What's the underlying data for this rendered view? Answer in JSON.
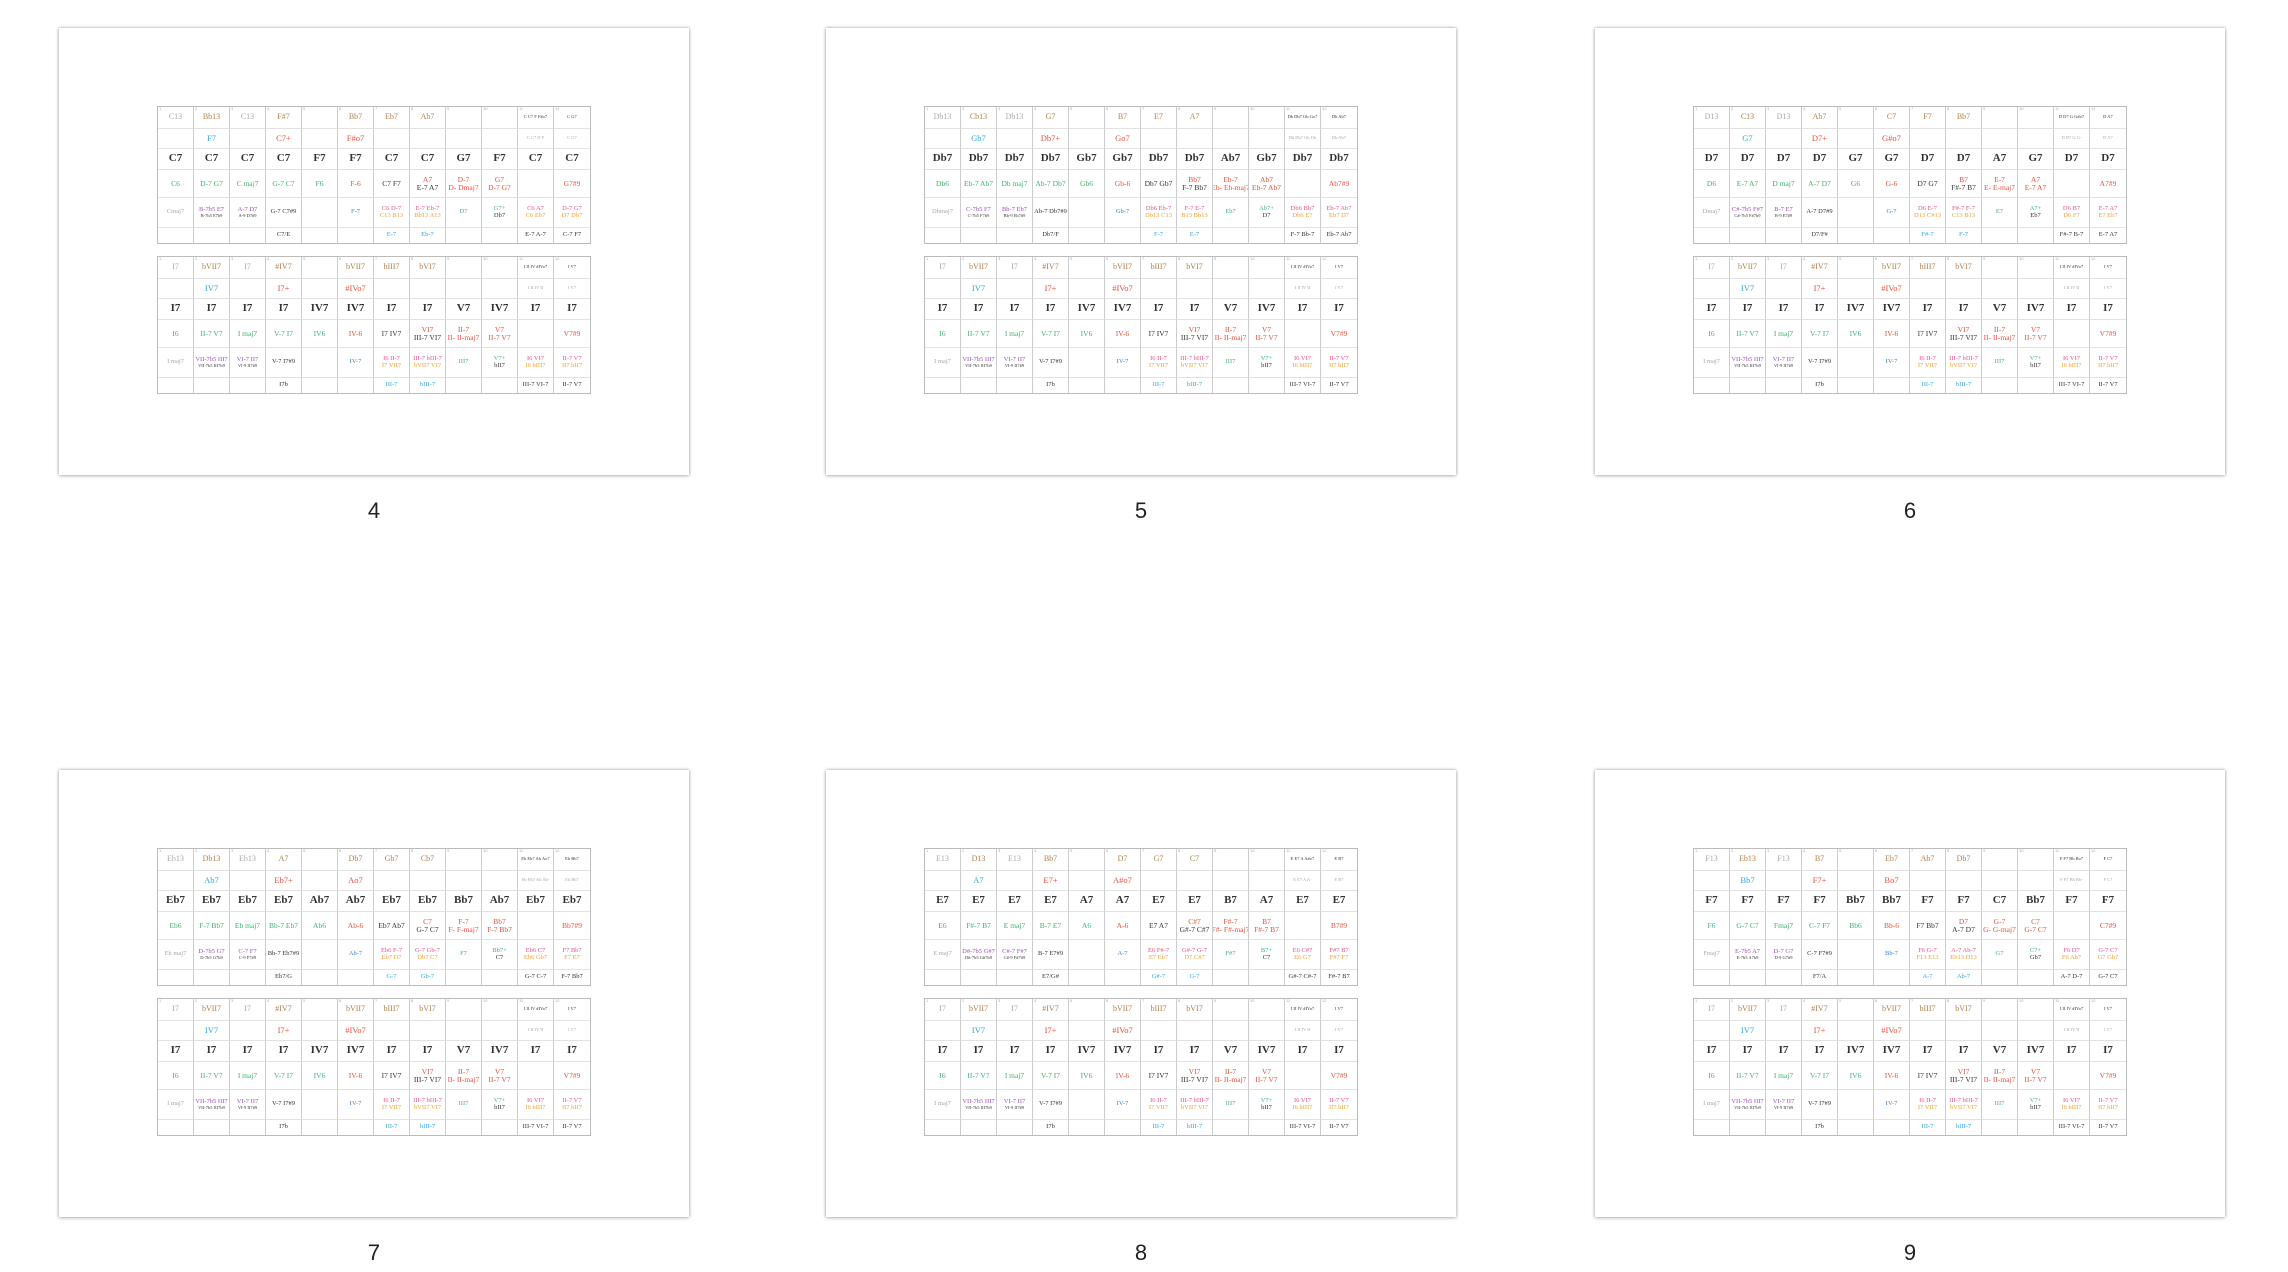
{
  "colors": {
    "brown": "#b0804a",
    "blue": "#2aa8e0",
    "red": "#e8503a",
    "green": "#3cb371",
    "purple": "#9b4fc0",
    "pink": "#e8508a",
    "orange": "#f0a030",
    "gray": "#a8a8a8",
    "dark": "#333333",
    "bluealt": "#3a7fd0"
  },
  "column_numbers": [
    "1",
    "2",
    "3",
    "4",
    "5",
    "6",
    "7",
    "8",
    "9",
    "10",
    "11",
    "12"
  ],
  "cell_colors": {
    "top": [
      "gray",
      "brown",
      "gray",
      "brown",
      "",
      "brown",
      "brown",
      "brown",
      "",
      "",
      "dark",
      "dark"
    ],
    "sub": [
      "",
      "blue",
      "",
      "red",
      "",
      "red",
      "",
      "",
      "",
      "",
      "gray",
      "gray"
    ],
    "main": [
      "dark",
      "dark",
      "dark",
      "dark",
      "dark",
      "dark",
      "dark",
      "dark",
      "dark",
      "dark",
      "dark",
      "dark"
    ],
    "ext": [
      "green",
      "green",
      "green",
      "green",
      "green",
      "red",
      "dark",
      "red|dark",
      "red|red",
      "red|red",
      "",
      "red"
    ],
    "alt": [
      "gray",
      "purple|dark",
      "purple|dark",
      "dark",
      "",
      "bluealt",
      "pink|orange",
      "pink|orange",
      "green",
      "green|dark",
      "pink|orange",
      "pink|orange"
    ],
    "bottom": [
      "",
      "",
      "",
      "dark",
      "",
      "",
      "blue",
      "blue",
      "",
      "",
      "dark",
      "dark"
    ]
  },
  "roman_table": {
    "top": [
      "I7",
      "bVII7",
      "I7",
      "#IV7",
      "",
      "bVII7",
      "bIII7",
      "bVI7",
      "",
      "",
      "I II IV #IVo7",
      "I V7"
    ],
    "sub": [
      "",
      "IV7",
      "",
      "I7+",
      "",
      "#IVo7",
      "",
      "",
      "",
      "",
      "I II IV II",
      "I V7"
    ],
    "main": [
      "I7",
      "I7",
      "I7",
      "I7",
      "IV7",
      "IV7",
      "I7",
      "I7",
      "V7",
      "IV7",
      "I7",
      "I7"
    ],
    "ext": [
      "I6",
      "II-7 V7",
      "I maj7",
      "V-7 I7",
      "IV6",
      "IV-6",
      "I7 IV7",
      [
        "VI7",
        "III-7 VI7"
      ],
      [
        "II-7",
        "II- II-maj7"
      ],
      [
        "V7",
        "II-7 V7"
      ],
      "",
      "V7#9"
    ],
    "alt": [
      "I maj7",
      [
        "VII-7b5 III7",
        "VII-7b5 III7b9"
      ],
      [
        "VI-7 II7",
        "VI-9 II7#9"
      ],
      "V-7 I7#9",
      "",
      "IV-7",
      [
        "I6 II-7",
        "I7 VII7"
      ],
      [
        "III-7 bIII-7",
        "bVII7 VI7"
      ],
      "III7",
      [
        "V7+",
        "bII7"
      ],
      [
        "I6 VI7",
        "I6 bIII7"
      ],
      [
        "II-7 V7",
        "II7 bII7"
      ]
    ],
    "bottom": [
      "",
      "",
      "",
      "I7b",
      "",
      "",
      "III-7",
      "bIII-7",
      "",
      "",
      "III-7 VI-7",
      "II-7 V7"
    ]
  },
  "pages": [
    {
      "label": "4",
      "chord_table": {
        "top": [
          "C13",
          "Bb13",
          "C13",
          "F#7",
          "",
          "Bb7",
          "Eb7",
          "Ab7",
          "",
          "",
          "C C7 F F#o7",
          "C G7"
        ],
        "sub": [
          "",
          "F7",
          "",
          "C7+",
          "",
          "F#o7",
          "",
          "",
          "",
          "",
          "C C7 D F",
          "C G7"
        ],
        "main": [
          "C7",
          "C7",
          "C7",
          "C7",
          "F7",
          "F7",
          "C7",
          "C7",
          "G7",
          "F7",
          "C7",
          "C7"
        ],
        "ext": [
          "C6",
          "D-7 G7",
          "C maj7",
          "G-7 C7",
          "F6",
          "F-6",
          "C7 F7",
          [
            "A7",
            "E-7 A7"
          ],
          [
            "D-7",
            "D- Dmaj7"
          ],
          [
            "G7",
            "D-7 G7"
          ],
          "",
          "G7#9"
        ],
        "alt": [
          "Cmaj7",
          [
            "B-7b5 E7",
            "B-7b5 E7b9"
          ],
          [
            "A-7 D7",
            "A-9 D7#9"
          ],
          "G-7 C7#9",
          "",
          "F-7",
          [
            "C6 D-7",
            "C13 B13"
          ],
          [
            "E-7 Eb-7",
            "Bb13 A13"
          ],
          "D7",
          [
            "G7+",
            "Db7"
          ],
          [
            "C6 A7",
            "C6 Eb7"
          ],
          [
            "D-7 G7",
            "D7 Db7"
          ]
        ],
        "bottom": [
          "",
          "",
          "",
          "C7/E",
          "",
          "",
          "E-7",
          "Eb-7",
          "",
          "",
          "E-7 A-7",
          "C-7 F7"
        ]
      }
    },
    {
      "label": "5",
      "chord_table": {
        "top": [
          "Db13",
          "Cb13",
          "Db13",
          "G7",
          "",
          "B7",
          "E7",
          "A7",
          "",
          "",
          "Db Db7 Gb Go7",
          "Db Ab7"
        ],
        "sub": [
          "",
          "Gb7",
          "",
          "Db7+",
          "",
          "Go7",
          "",
          "",
          "",
          "",
          "Db Db7 Gb Gb",
          "Db Ab7"
        ],
        "main": [
          "Db7",
          "Db7",
          "Db7",
          "Db7",
          "Gb7",
          "Gb7",
          "Db7",
          "Db7",
          "Ab7",
          "Gb7",
          "Db7",
          "Db7"
        ],
        "ext": [
          "Db6",
          "Eb-7 Ab7",
          "Db maj7",
          "Ab-7 Db7",
          "Gb6",
          "Gb-6",
          "Db7 Gb7",
          [
            "Bb7",
            "F-7 Bb7"
          ],
          [
            "Eb-7",
            "Eb- Eb-maj7"
          ],
          [
            "Ab7",
            "Eb-7 Ab7"
          ],
          "",
          "Ab7#9"
        ],
        "alt": [
          "Dbmaj7",
          [
            "C-7b5 F7",
            "C-7b5 F7b9"
          ],
          [
            "Bb-7 Eb7",
            "Bb-9 Eb7#9"
          ],
          "Ab-7 Db7#9",
          "",
          "Gb-7",
          [
            "Db6 Eb-7",
            "Db13 C13"
          ],
          [
            "F-7 E-7",
            "B13 Bb13"
          ],
          "Eb7",
          [
            "Ab7+",
            "D7"
          ],
          [
            "Db6 Bb7",
            "Db6 E7"
          ],
          [
            "Eb-7 Ab7",
            "Eb7 D7"
          ]
        ],
        "bottom": [
          "",
          "",
          "",
          "Db7/F",
          "",
          "",
          "F-7",
          "E-7",
          "",
          "",
          "F-7 Bb-7",
          "Eb-7 Ab7"
        ]
      }
    },
    {
      "label": "6",
      "chord_table": {
        "top": [
          "D13",
          "C13",
          "D13",
          "Ab7",
          "",
          "C7",
          "F7",
          "Bb7",
          "",
          "",
          "D D7 G G#o7",
          "D A7"
        ],
        "sub": [
          "",
          "G7",
          "",
          "D7+",
          "",
          "G#o7",
          "",
          "",
          "",
          "",
          "D D7 G G-",
          "D A7"
        ],
        "main": [
          "D7",
          "D7",
          "D7",
          "D7",
          "G7",
          "G7",
          "D7",
          "D7",
          "A7",
          "G7",
          "D7",
          "D7"
        ],
        "ext": [
          "D6",
          "E-7 A7",
          "D maj7",
          "A-7 D7",
          "G6",
          "G-6",
          "D7 G7",
          [
            "B7",
            "F#-7 B7"
          ],
          [
            "E-7",
            "E- E-maj7"
          ],
          [
            "A7",
            "E-7 A7"
          ],
          "",
          "A7#9"
        ],
        "alt": [
          "Dmaj7",
          [
            "C#-7b5 F#7",
            "C#-7b5 F#7b9"
          ],
          [
            "B-7 E7",
            "B-9 E7#9"
          ],
          "A-7 D7#9",
          "",
          "G-7",
          [
            "D6 E-7",
            "D13 C#13"
          ],
          [
            "F#-7 F-7",
            "C13 B13"
          ],
          "E7",
          [
            "A7+",
            "Eb7"
          ],
          [
            "D6 B7",
            "D6 F7"
          ],
          [
            "E-7 A7",
            "E7 Eb7"
          ]
        ],
        "bottom": [
          "",
          "",
          "",
          "D7/F#",
          "",
          "",
          "F#-7",
          "F-7",
          "",
          "",
          "F#-7 B-7",
          "E-7 A7"
        ]
      }
    },
    {
      "label": "7",
      "chord_table": {
        "top": [
          "Eb13",
          "Db13",
          "Eb13",
          "A7",
          "",
          "Db7",
          "Gb7",
          "Cb7",
          "",
          "",
          "Eb Eb7 Ab Ao7",
          "Eb Bb7"
        ],
        "sub": [
          "",
          "Ab7",
          "",
          "Eb7+",
          "",
          "Ao7",
          "",
          "",
          "",
          "",
          "Eb Eb7 Ab Ab-",
          "Eb Bb7"
        ],
        "main": [
          "Eb7",
          "Eb7",
          "Eb7",
          "Eb7",
          "Ab7",
          "Ab7",
          "Eb7",
          "Eb7",
          "Bb7",
          "Ab7",
          "Eb7",
          "Eb7"
        ],
        "ext": [
          "Eb6",
          "F-7 Bb7",
          "Eb maj7",
          "Bb-7 Eb7",
          "Ab6",
          "Ab-6",
          "Eb7 Ab7",
          [
            "C7",
            "G-7 C7"
          ],
          [
            "F-7",
            "F- F-maj7"
          ],
          [
            "Bb7",
            "F-7 Bb7"
          ],
          "",
          "Bb7#9"
        ],
        "alt": [
          "Eb maj7",
          [
            "D-7b5 G7",
            "D-7b5 G7b9"
          ],
          [
            "C-7 F7",
            "C-9 F7#9"
          ],
          "Bb-7 Eb7#9",
          "",
          "Ab-7",
          [
            "Eb6 F-7",
            "Eb7 D7"
          ],
          [
            "G-7 Gb-7",
            "Db7 C7"
          ],
          "F7",
          [
            "Bb7+",
            "C7"
          ],
          [
            "Eb6 C7",
            "Eb6 Gb7"
          ],
          [
            "F7 Bb7",
            "F7 E7"
          ]
        ],
        "bottom": [
          "",
          "",
          "",
          "Eb7/G",
          "",
          "",
          "G-7",
          "Gb-7",
          "",
          "",
          "G-7 C-7",
          "F-7 Bb7"
        ]
      }
    },
    {
      "label": "8",
      "chord_table": {
        "top": [
          "E13",
          "D13",
          "E13",
          "Bb7",
          "",
          "D7",
          "G7",
          "C7",
          "",
          "",
          "E E7 A A#o7",
          "E B7"
        ],
        "sub": [
          "",
          "A7",
          "",
          "E7+",
          "",
          "A#o7",
          "",
          "",
          "",
          "",
          "E E7 A A-",
          "E B7"
        ],
        "main": [
          "E7",
          "E7",
          "E7",
          "E7",
          "A7",
          "A7",
          "E7",
          "E7",
          "B7",
          "A7",
          "E7",
          "E7"
        ],
        "ext": [
          "E6",
          "F#-7 B7",
          "E maj7",
          "B-7 E7",
          "A6",
          "A-6",
          "E7 A7",
          [
            "C#7",
            "G#-7 C#7"
          ],
          [
            "F#-7",
            "F#- F#-maj7"
          ],
          [
            "B7",
            "F#-7 B7"
          ],
          "",
          "B7#9"
        ],
        "alt": [
          "E maj7",
          [
            "D#-7b5 G#7",
            "D#-7b5 G#7b9"
          ],
          [
            "C#-7 F#7",
            "C#-9 F#7#9"
          ],
          "B-7 E7#9",
          "",
          "A-7",
          [
            "E6 F#-7",
            "E7 Eb7"
          ],
          [
            "G#-7 G-7",
            "D7 C#7"
          ],
          "F#7",
          [
            "B7+",
            "C7"
          ],
          [
            "E6 C#7",
            "E6 G7"
          ],
          [
            "F#7 B7",
            "F#7 F7"
          ]
        ],
        "bottom": [
          "",
          "",
          "",
          "E7/G#",
          "",
          "",
          "G#-7",
          "G-7",
          "",
          "",
          "G#-7 C#-7",
          "F#-7 B7"
        ]
      }
    },
    {
      "label": "9",
      "chord_table": {
        "top": [
          "F13",
          "Eb13",
          "F13",
          "B7",
          "",
          "Eb7",
          "Ab7",
          "Db7",
          "",
          "",
          "F F7 Bb Bo7",
          "F C7"
        ],
        "sub": [
          "",
          "Bb7",
          "",
          "F7+",
          "",
          "Bo7",
          "",
          "",
          "",
          "",
          "F F7 Bb Bb-",
          "F C7"
        ],
        "main": [
          "F7",
          "F7",
          "F7",
          "F7",
          "Bb7",
          "Bb7",
          "F7",
          "F7",
          "C7",
          "Bb7",
          "F7",
          "F7"
        ],
        "ext": [
          "F6",
          "G-7 C7",
          "Fmaj7",
          "C-7 F7",
          "Bb6",
          "Bb-6",
          "F7 Bb7",
          [
            "D7",
            "A-7 D7"
          ],
          [
            "G-7",
            "G- G-maj7"
          ],
          [
            "C7",
            "G-7 C7"
          ],
          "",
          "C7#9"
        ],
        "alt": [
          "Fmaj7",
          [
            "E-7b5 A7",
            "E-7b5 A7b9"
          ],
          [
            "D-7 G7",
            "D-9 G7#9"
          ],
          "C-7 F7#9",
          "",
          "Bb-7",
          [
            "F6 G-7",
            "F13 E13"
          ],
          [
            "A-7 Ab-7",
            "Eb13 D13"
          ],
          "G7",
          [
            "C7+",
            "Gb7"
          ],
          [
            "F6 D7",
            "F6 Ab7"
          ],
          [
            "G-7 C7",
            "G7 Gb7"
          ]
        ],
        "bottom": [
          "",
          "",
          "",
          "F7/A",
          "",
          "",
          "A-7",
          "Ab-7",
          "",
          "",
          "A-7 D-7",
          "G-7 C7"
        ]
      }
    }
  ]
}
